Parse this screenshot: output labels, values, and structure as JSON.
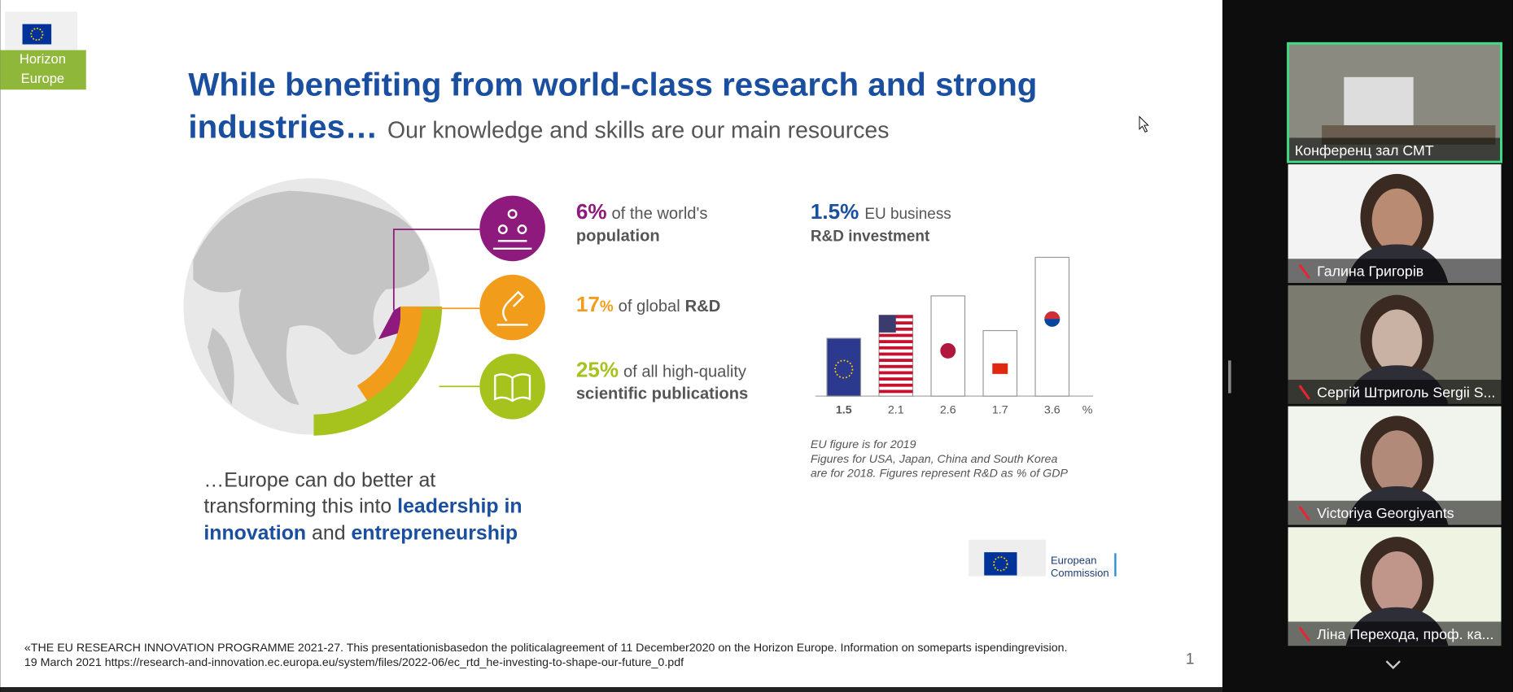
{
  "logo": {
    "line1": "Horizon",
    "line2": "Europe"
  },
  "title": {
    "line1": "While benefiting from world-class research and strong",
    "line2_bold": "industries…",
    "line2_rest": "Our knowledge and skills are our main resources"
  },
  "stats": [
    {
      "value": "6%",
      "text": "of the world's",
      "bold": "population"
    },
    {
      "value": "17",
      "unit": "%",
      "text": "of global",
      "bold": "R&D"
    },
    {
      "value": "25%",
      "text": "of all high-quality",
      "bold": "scientific publications"
    }
  ],
  "rd_chart": {
    "title_value": "1.5%",
    "title_text": "EU business",
    "title_bold": "R&D investment",
    "values": [
      1.5,
      2.1,
      2.6,
      1.7,
      3.6
    ],
    "unit": "%",
    "notes": [
      "EU figure is for 2019",
      "Figures for USA, Japan, China and South Korea",
      "are for 2018. Figures represent R&D as % of GDP"
    ]
  },
  "conclusion": {
    "l1": "…Europe can do better at",
    "l2a": "transforming this into",
    "l2b": "leadership in",
    "l3a": "innovation",
    "l3b": "and",
    "l3c": "entrepreneurship"
  },
  "commission": {
    "line1": "European",
    "line2": "Commission"
  },
  "footer": {
    "line1": "«THE EU RESEARCH INNOVATION PROGRAMME 2021-27.  This presentationisbasedon the politicalagreement of 11 December2020 on the Horizon Europe. Information on someparts ispendingrevision.",
    "line2": "19 March 2021 https://research-and-innovation.ec.europa.eu/system/files/2022-06/ec_rtd_he-investing-to-shape-our-future_0.pdf",
    "page": "1"
  },
  "participants": [
    "Конференц зал СМТ",
    "Галина Григорів",
    "Сергій Штриголь Sergii S...",
    "Victoriya Georgiyants",
    "Ліна Перехода, проф. ка..."
  ]
}
